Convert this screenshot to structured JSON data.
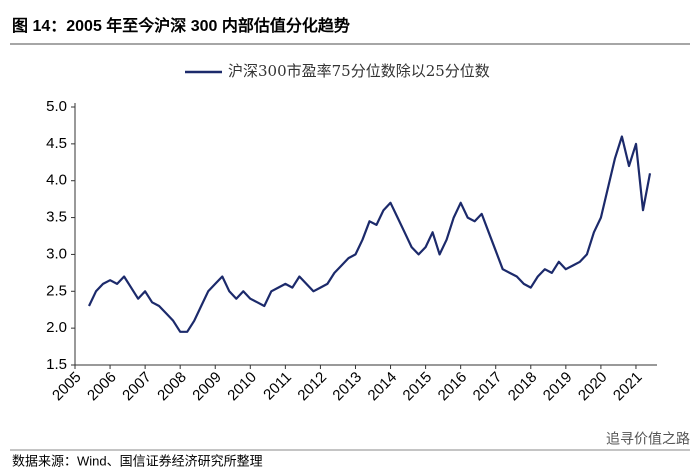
{
  "chart_data": {
    "type": "line",
    "title": "图 14：2005 年至今沪深 300 内部估值分化趋势",
    "source": "数据来源：Wind、国信证券经济研究所整理",
    "watermark": "追寻价值之路",
    "x": [
      2005.4,
      2005.6,
      2005.8,
      2006.0,
      2006.2,
      2006.4,
      2006.6,
      2006.8,
      2007.0,
      2007.2,
      2007.4,
      2007.6,
      2007.8,
      2008.0,
      2008.2,
      2008.4,
      2008.6,
      2008.8,
      2009.0,
      2009.2,
      2009.4,
      2009.6,
      2009.8,
      2010.0,
      2010.2,
      2010.4,
      2010.6,
      2010.8,
      2011.0,
      2011.2,
      2011.4,
      2011.6,
      2011.8,
      2012.0,
      2012.2,
      2012.4,
      2012.6,
      2012.8,
      2013.0,
      2013.2,
      2013.4,
      2013.6,
      2013.8,
      2014.0,
      2014.2,
      2014.4,
      2014.6,
      2014.8,
      2015.0,
      2015.2,
      2015.4,
      2015.6,
      2015.8,
      2016.0,
      2016.2,
      2016.4,
      2016.6,
      2016.8,
      2017.0,
      2017.2,
      2017.4,
      2017.6,
      2017.8,
      2018.0,
      2018.2,
      2018.4,
      2018.6,
      2018.8,
      2019.0,
      2019.2,
      2019.4,
      2019.6,
      2019.8,
      2020.0,
      2020.2,
      2020.4,
      2020.6,
      2020.8,
      2021.0,
      2021.2,
      2021.4
    ],
    "series": [
      {
        "name": "沪深300市盈率75分位数除以25分位数",
        "color": "#1c2a6b",
        "values": [
          2.3,
          2.5,
          2.6,
          2.65,
          2.6,
          2.7,
          2.55,
          2.4,
          2.5,
          2.35,
          2.3,
          2.2,
          2.1,
          1.95,
          1.95,
          2.1,
          2.3,
          2.5,
          2.6,
          2.7,
          2.5,
          2.4,
          2.5,
          2.4,
          2.35,
          2.3,
          2.5,
          2.55,
          2.6,
          2.55,
          2.7,
          2.6,
          2.5,
          2.55,
          2.6,
          2.75,
          2.85,
          2.95,
          3.0,
          3.2,
          3.45,
          3.4,
          3.6,
          3.7,
          3.5,
          3.3,
          3.1,
          3.0,
          3.1,
          3.3,
          3.0,
          3.2,
          3.5,
          3.7,
          3.5,
          3.45,
          3.55,
          3.3,
          3.05,
          2.8,
          2.75,
          2.7,
          2.6,
          2.55,
          2.7,
          2.8,
          2.75,
          2.9,
          2.8,
          2.85,
          2.9,
          3.0,
          3.3,
          3.5,
          3.9,
          4.3,
          4.6,
          4.2,
          4.5,
          3.6,
          4.1
        ]
      }
    ],
    "xlim": [
      2005,
      2021.6
    ],
    "xticks": [
      2005,
      2006,
      2007,
      2008,
      2009,
      2010,
      2011,
      2012,
      2013,
      2014,
      2015,
      2016,
      2017,
      2018,
      2019,
      2020,
      2021
    ],
    "ylim": [
      1.5,
      5.0
    ],
    "yticks": [
      1.5,
      {
        "value": 2,
        "label": "2.0"
      },
      2.5,
      {
        "value": 3,
        "label": "3.0"
      },
      3.5,
      {
        "value": 4,
        "label": "4.0"
      },
      4.5,
      {
        "value": 5,
        "label": "5.0"
      }
    ],
    "grid": false,
    "legend": "top"
  }
}
